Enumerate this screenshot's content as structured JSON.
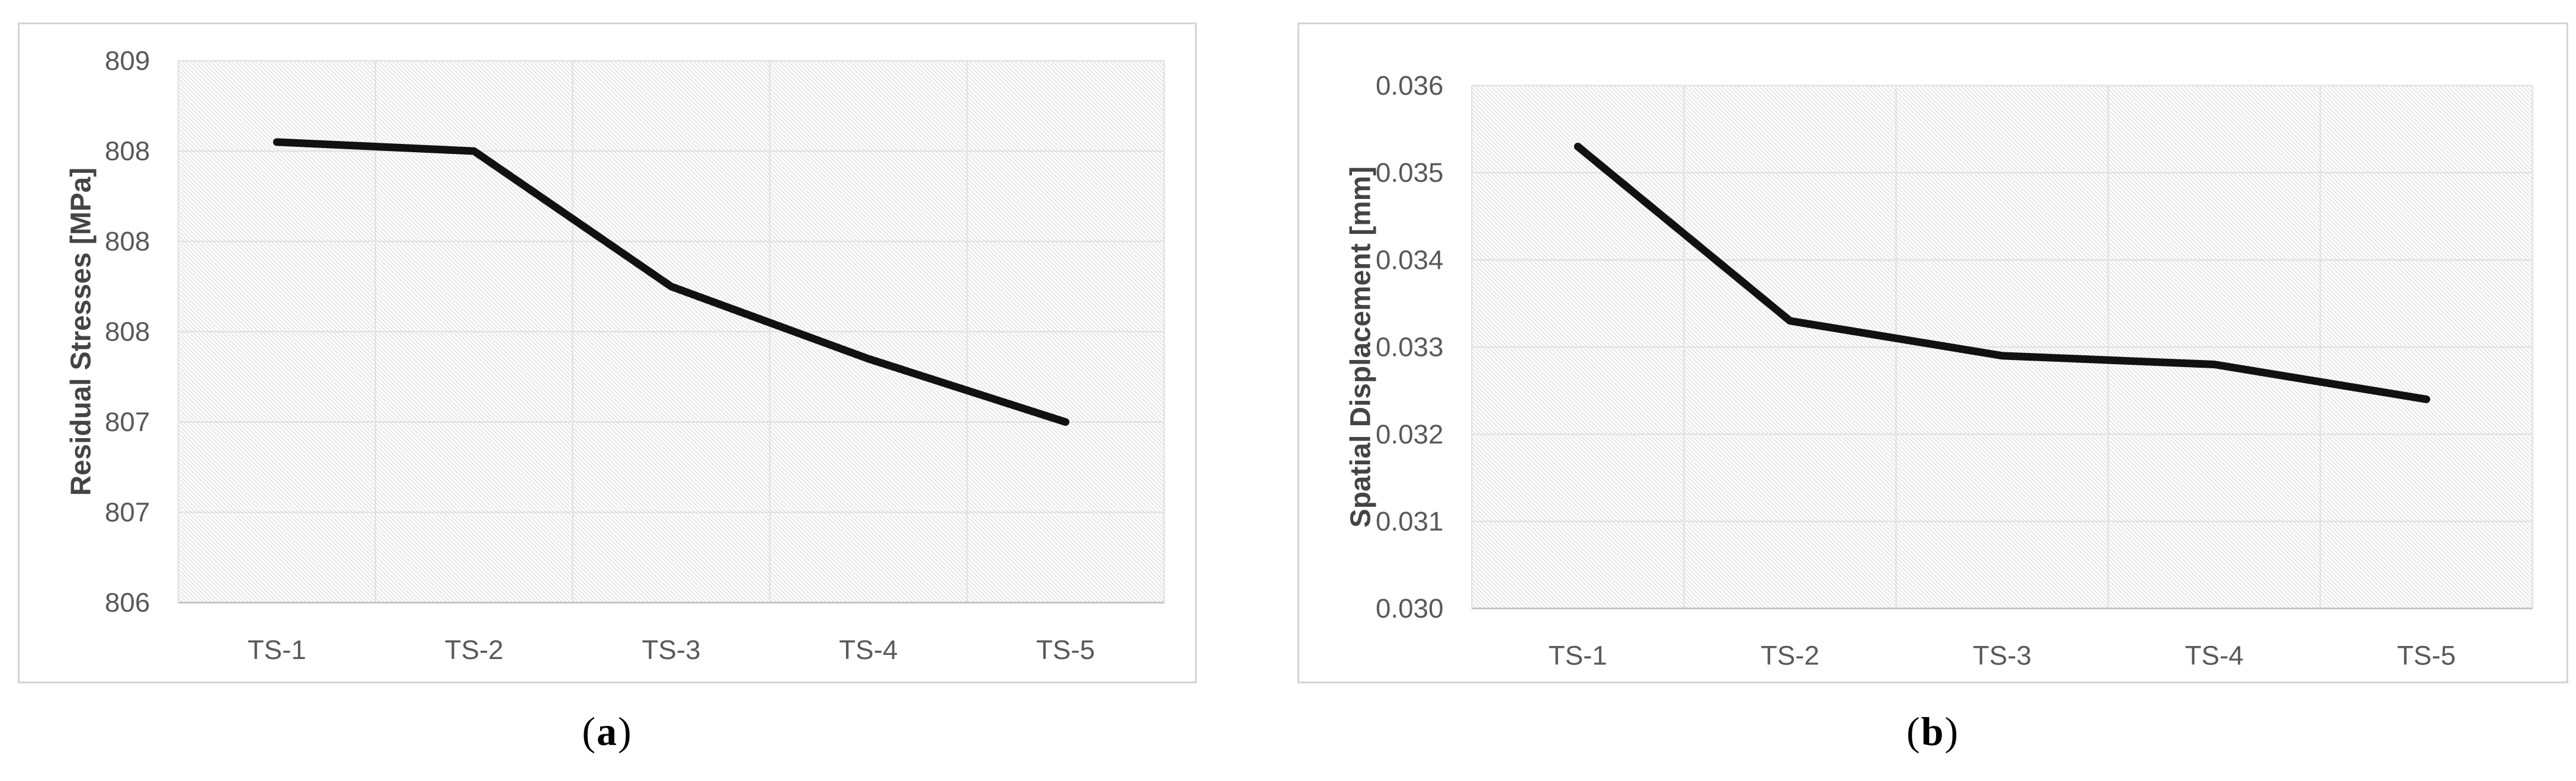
{
  "styles": {
    "background": "#ffffff",
    "panel_border_color": "#d4d4d4",
    "grid_color": "#e2e2e2",
    "hatch_color": "#e2e2e2",
    "axis_line_color": "#c3c3c3",
    "tick_color": "#595959",
    "axis_title_color": "#444444",
    "line_color": "#111111",
    "caption_color": "#000000"
  },
  "chart_data": [
    {
      "id": "a",
      "type": "line",
      "title": "",
      "xlabel": "",
      "ylabel": "Residual Stresses [MPa]",
      "categories": [
        "TS-1",
        "TS-2",
        "TS-3",
        "TS-4",
        "TS-5"
      ],
      "values": [
        808.55,
        808.5,
        807.75,
        807.35,
        807.0
      ],
      "ylim": [
        806,
        809
      ],
      "y_major_unit": 0.5,
      "y_tick_labels": [
        "809",
        "808",
        "808",
        "808",
        "807",
        "807",
        "806"
      ],
      "grid": "on",
      "legend": "none",
      "plot_fill": "diagonal-hatch",
      "caption": {
        "open": "(",
        "label": "a",
        "close": ")"
      }
    },
    {
      "id": "b",
      "type": "line",
      "title": "",
      "xlabel": "",
      "ylabel": "Spatial Displacement [mm]",
      "categories": [
        "TS-1",
        "TS-2",
        "TS-3",
        "TS-4",
        "TS-5"
      ],
      "values": [
        0.0353,
        0.0333,
        0.0329,
        0.0328,
        0.0324
      ],
      "ylim": [
        0.03,
        0.036
      ],
      "y_major_unit": 0.001,
      "y_tick_labels": [
        "0.036",
        "0.035",
        "0.034",
        "0.033",
        "0.032",
        "0.031",
        "0.030"
      ],
      "grid": "on",
      "legend": "none",
      "plot_fill": "diagonal-hatch",
      "caption": {
        "open": "(",
        "label": "b",
        "close": ")"
      }
    }
  ]
}
